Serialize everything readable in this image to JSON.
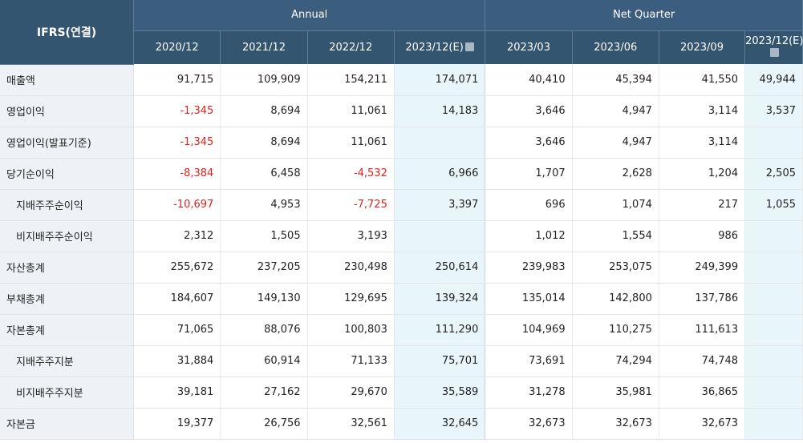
{
  "table": {
    "corner_label": "IFRS(연결)",
    "groups": [
      {
        "label": "Annual"
      },
      {
        "label": "Net Quarter"
      }
    ],
    "columns": [
      "2020/12",
      "2021/12",
      "2022/12",
      "2023/12(E)",
      "2023/03",
      "2023/06",
      "2023/09",
      "2023/12(E)"
    ],
    "estimate_columns": [
      3,
      7
    ],
    "negative_color": "#e0201b",
    "estimate_bg": "#e8f5fb",
    "header_bg": "#3b5d7e",
    "rows": [
      {
        "label": "매출액",
        "indent": false,
        "values": [
          "91,715",
          "109,909",
          "154,211",
          "174,071",
          "40,410",
          "45,394",
          "41,550",
          "49,944"
        ]
      },
      {
        "label": "영업이익",
        "indent": false,
        "values": [
          "-1,345",
          "8,694",
          "11,061",
          "14,183",
          "3,646",
          "4,947",
          "3,114",
          "3,537"
        ]
      },
      {
        "label": "영업이익(발표기준)",
        "indent": false,
        "values": [
          "-1,345",
          "8,694",
          "11,061",
          "",
          "3,646",
          "4,947",
          "3,114",
          ""
        ]
      },
      {
        "label": "당기순이익",
        "indent": false,
        "values": [
          "-8,384",
          "6,458",
          "-4,532",
          "6,966",
          "1,707",
          "2,628",
          "1,204",
          "2,505"
        ]
      },
      {
        "label": "지배주주순이익",
        "indent": true,
        "values": [
          "-10,697",
          "4,953",
          "-7,725",
          "3,397",
          "696",
          "1,074",
          "217",
          "1,055"
        ]
      },
      {
        "label": "비지배주주순이익",
        "indent": true,
        "values": [
          "2,312",
          "1,505",
          "3,193",
          "",
          "1,012",
          "1,554",
          "986",
          ""
        ]
      },
      {
        "label": "자산총계",
        "indent": false,
        "values": [
          "255,672",
          "237,205",
          "230,498",
          "250,614",
          "239,983",
          "253,075",
          "249,399",
          ""
        ]
      },
      {
        "label": "부채총계",
        "indent": false,
        "values": [
          "184,607",
          "149,130",
          "129,695",
          "139,324",
          "135,014",
          "142,800",
          "137,786",
          ""
        ]
      },
      {
        "label": "자본총계",
        "indent": false,
        "values": [
          "71,065",
          "88,076",
          "100,803",
          "111,290",
          "104,969",
          "110,275",
          "111,613",
          ""
        ]
      },
      {
        "label": "지배주주지분",
        "indent": true,
        "values": [
          "31,884",
          "60,914",
          "71,133",
          "75,701",
          "73,691",
          "74,294",
          "74,748",
          ""
        ]
      },
      {
        "label": "비지배주주지분",
        "indent": true,
        "values": [
          "39,181",
          "27,162",
          "29,670",
          "35,589",
          "31,278",
          "35,981",
          "36,865",
          ""
        ]
      },
      {
        "label": "자본금",
        "indent": false,
        "values": [
          "19,377",
          "26,756",
          "32,561",
          "32,645",
          "32,673",
          "32,673",
          "32,673",
          ""
        ]
      }
    ]
  }
}
